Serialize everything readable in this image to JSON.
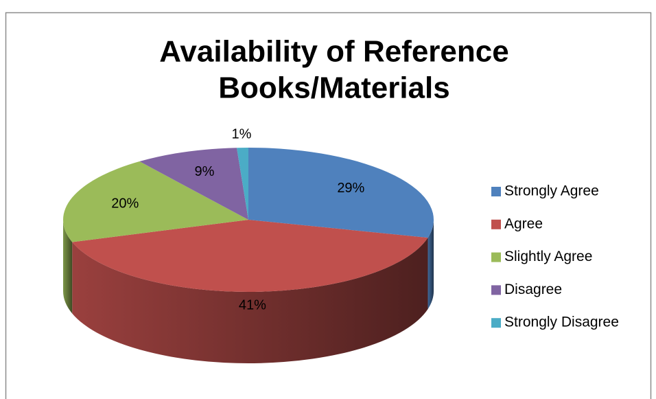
{
  "chart_data": {
    "type": "pie",
    "title": [
      "Availability of Reference",
      "Books/Materials"
    ],
    "categories": [
      "Strongly Agree",
      "Agree",
      "Slightly Agree",
      "Disagree",
      "Strongly Disagree"
    ],
    "values": [
      29,
      41,
      20,
      9,
      1
    ],
    "value_labels": [
      "29%",
      "41%",
      "20%",
      "9%",
      "1%"
    ],
    "colors": [
      "#4f81bd",
      "#c0504d",
      "#9bbb59",
      "#8064a2",
      "#4bacc6"
    ],
    "legend": "right"
  }
}
